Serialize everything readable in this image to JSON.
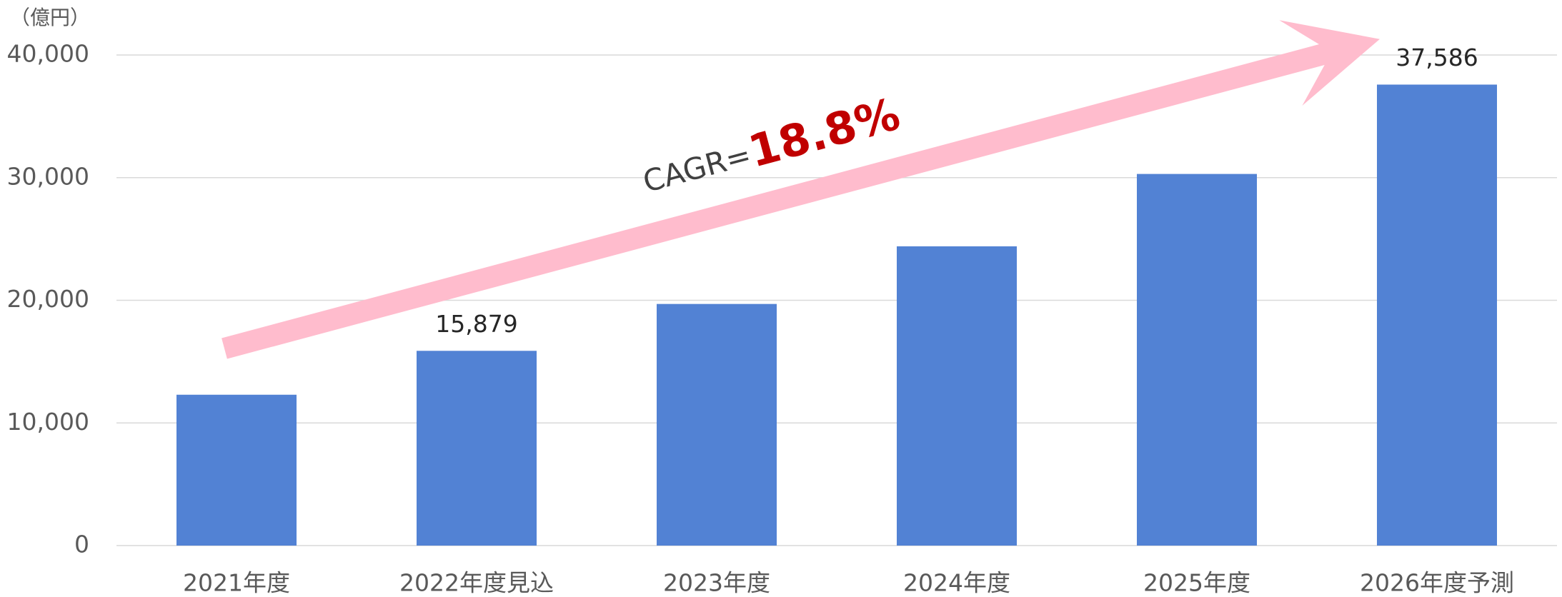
{
  "chart_data": {
    "type": "bar",
    "y_axis_label": "（億円）",
    "categories": [
      "2021年度",
      "2022年度見込",
      "2023年度",
      "2024年度",
      "2025年度",
      "2026年度予測"
    ],
    "values": [
      12300,
      15879,
      19700,
      24400,
      30300,
      37586
    ],
    "value_labels": [
      null,
      "15,879",
      null,
      null,
      null,
      "37,586"
    ],
    "color": "#5282d4",
    "ylim": [
      0,
      40000
    ],
    "yticks": [
      0,
      {
        "value": 10000,
        "label": "10,000"
      },
      {
        "value": 20000,
        "label": "20,000"
      },
      {
        "value": 30000,
        "label": "30,000"
      },
      {
        "value": 40000,
        "label": "40,000"
      }
    ],
    "grid": true,
    "annotation": {
      "prefix": "CAGR=",
      "value": "18.8%"
    }
  }
}
